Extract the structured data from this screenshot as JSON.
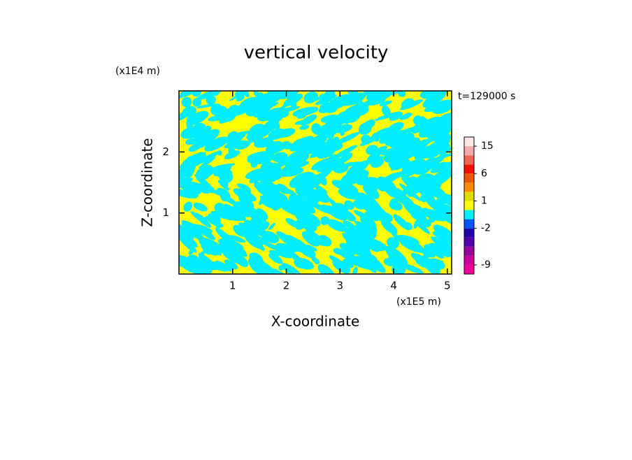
{
  "chart_data": {
    "type": "contour",
    "title": "vertical velocity",
    "x_label": "X-coordinate",
    "y_label": "Z-coordinate",
    "x_unit": "(x1E5 m)",
    "y_unit": "(x1E4 m)",
    "annotation": "t=129000 s",
    "xlim": [
      0,
      5.08
    ],
    "xticks": [
      1,
      2,
      3,
      4,
      5
    ],
    "ylim": [
      0,
      3
    ],
    "yticks": [
      1,
      2
    ],
    "colorbar": {
      "levels": [
        -12,
        -9,
        -6,
        -4,
        -3,
        -2,
        -1,
        0,
        1,
        2,
        4,
        6,
        9,
        12,
        15,
        20
      ],
      "colors": [
        "#ee0099",
        "#cc0099",
        "#990099",
        "#5500aa",
        "#2200aa",
        "#0055ff",
        "#00eeff",
        "#ffff00",
        "#dddd00",
        "#ff8800",
        "#ee5500",
        "#ee1100",
        "#ee6655",
        "#f4aaaa",
        "#fde8e4"
      ],
      "ticks": [
        -9,
        -2,
        1,
        6,
        15
      ]
    },
    "field_colors": [
      "#00eeff",
      "#ffff00"
    ]
  }
}
